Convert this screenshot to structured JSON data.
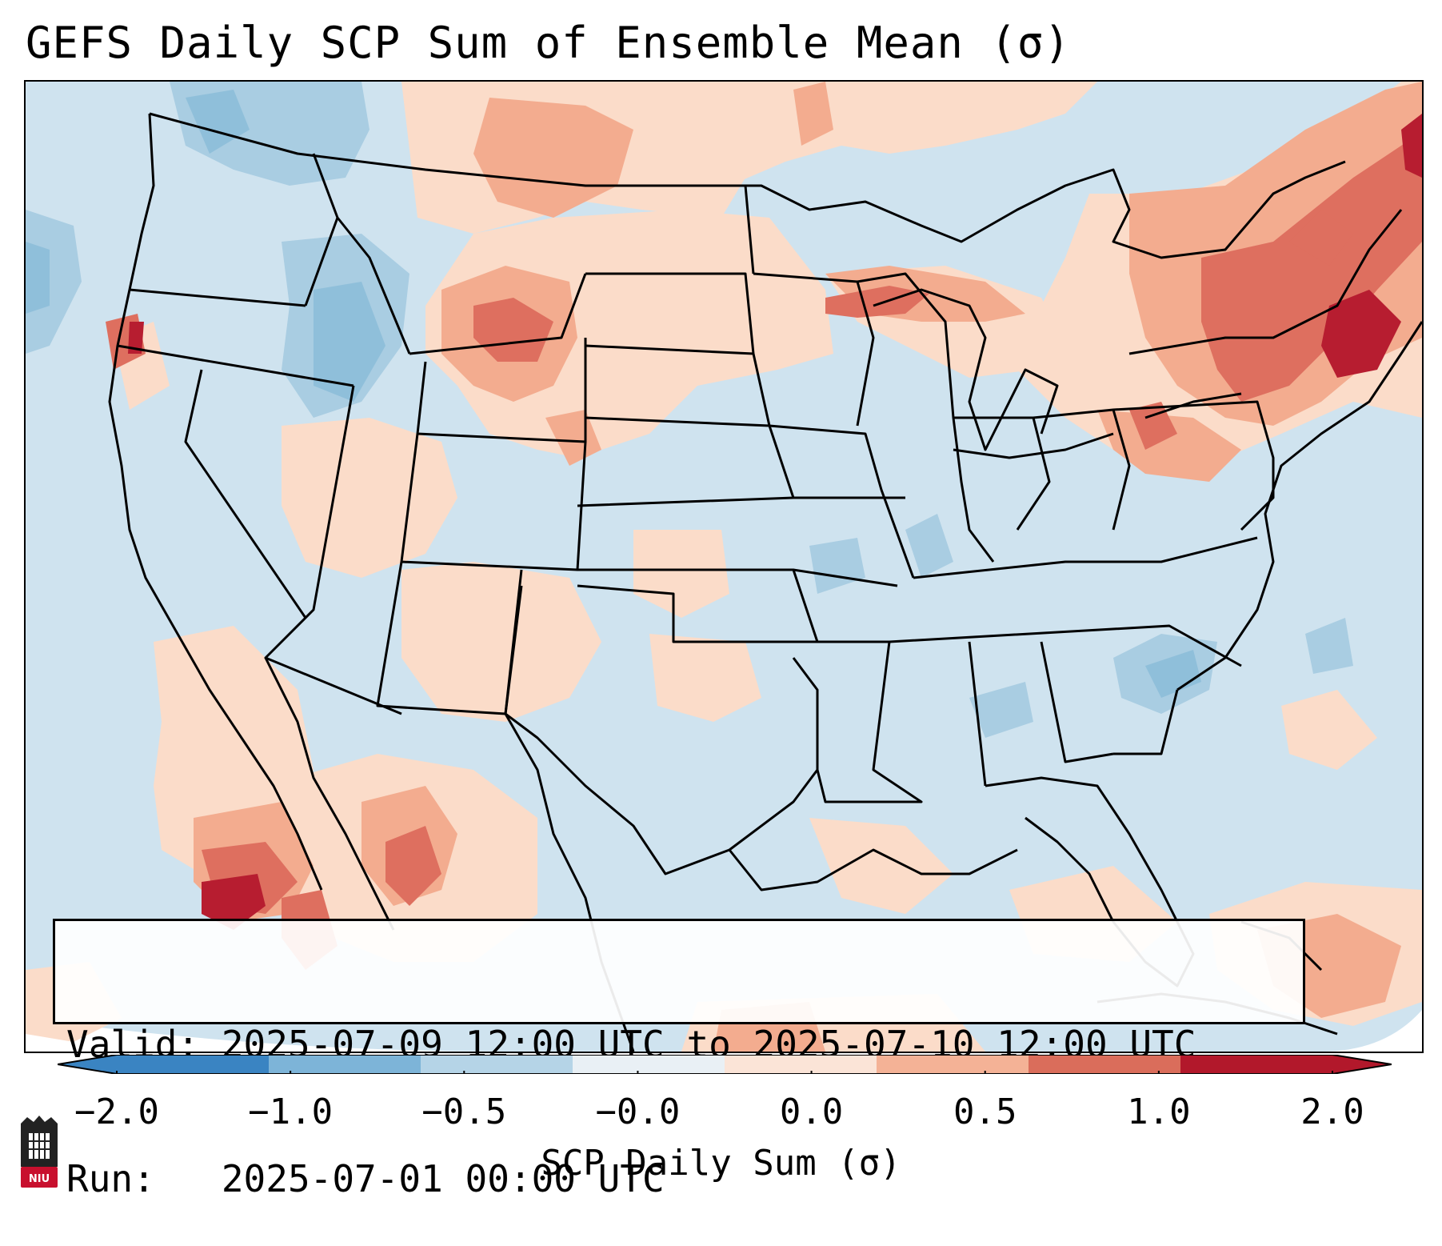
{
  "title": "GEFS Daily SCP Sum of Ensemble Mean (σ)",
  "info": {
    "valid_line": "Valid: 2025-07-09 12:00 UTC to 2025-07-10 12:00 UTC",
    "run_line": "Run:   2025-07-01 00:00 UTC"
  },
  "colorbar": {
    "label": "SCP Daily Sum (σ)",
    "ticks": [
      "−2.0",
      "−1.0",
      "−0.5",
      "−0.0",
      "0.0",
      "0.5",
      "1.0",
      "2.0"
    ],
    "colors": [
      "#3a84c2",
      "#7db4d8",
      "#b5d4e7",
      "#e9f0f5",
      "#fbe4d7",
      "#f4b296",
      "#da6d5b",
      "#b2182b"
    ],
    "extend": "both"
  },
  "map": {
    "projection": "Lambert Conformal, CONUS",
    "colors": {
      "background": "#cfe3ef",
      "light_blue": "#a9cde2",
      "medium_blue": "#8fbfda",
      "light_red": "#fbdcc9",
      "medium_red": "#f3ac8f",
      "strong_red": "#de6f5f",
      "darkest_red": "#b71d30",
      "state_lines": "#000000"
    }
  },
  "logo": {
    "text": "NIU",
    "color": "#c8102e"
  }
}
